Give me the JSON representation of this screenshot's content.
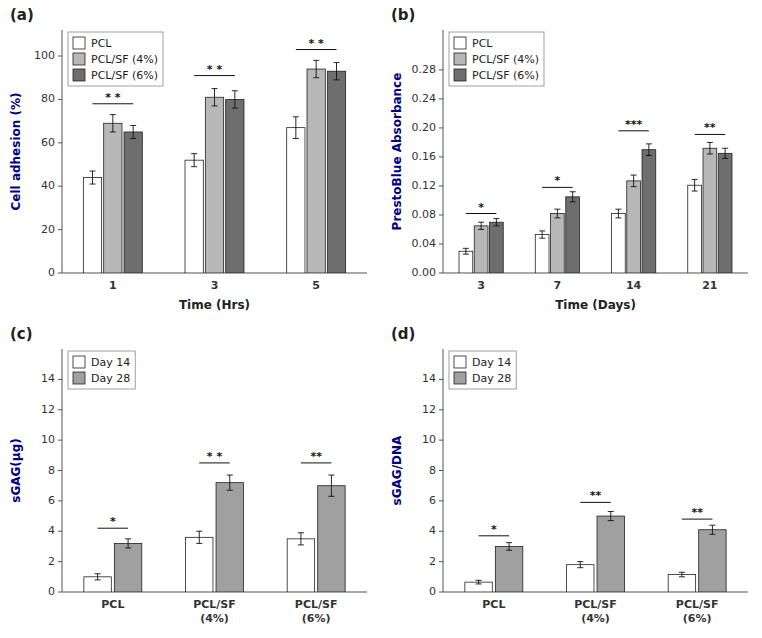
{
  "chart_data": [
    {
      "type": "bar",
      "title": "(a)",
      "x_label": "Time (Hrs)",
      "y_label": "Cell adhesion (%)",
      "categories": [
        "1",
        "3",
        "5"
      ],
      "series": [
        {
          "name": "PCL",
          "color": "white",
          "values": [
            44,
            52,
            67
          ],
          "errors": [
            3,
            3,
            5
          ]
        },
        {
          "name": "PCL/SF (4%)",
          "color": "#b8b8b8",
          "values": [
            69,
            81,
            94
          ],
          "errors": [
            4,
            4,
            4
          ]
        },
        {
          "name": "PCL/SF (6%)",
          "color": "#6e6e6e",
          "values": [
            65,
            80,
            93
          ],
          "errors": [
            3,
            4,
            4
          ]
        }
      ],
      "ylim": [
        0,
        112
      ],
      "yticks": [
        0,
        20,
        40,
        60,
        80,
        100
      ],
      "grid": false,
      "legend": "upper left",
      "annotations": [
        {
          "text": "* *",
          "y": 78,
          "category": "1",
          "series": [
            "PCL",
            "PCL/SF (6%)"
          ]
        },
        {
          "text": "* *",
          "y": 91,
          "category": "3",
          "series": [
            "PCL",
            "PCL/SF (6%)"
          ]
        },
        {
          "text": "* *",
          "y": 103,
          "category": "5",
          "series": [
            "PCL",
            "PCL/SF (6%)"
          ]
        }
      ]
    },
    {
      "type": "bar",
      "title": "(b)",
      "x_label": "Time (Days)",
      "y_label": "PrestoBlue Absorbance",
      "categories": [
        "3",
        "7",
        "14",
        "21"
      ],
      "series": [
        {
          "name": "PCL",
          "color": "white",
          "values": [
            0.03,
            0.053,
            0.082,
            0.121
          ],
          "errors": [
            0.004,
            0.005,
            0.006,
            0.008
          ]
        },
        {
          "name": "PCL/SF (4%)",
          "color": "#b8b8b8",
          "values": [
            0.065,
            0.082,
            0.127,
            0.172
          ],
          "errors": [
            0.005,
            0.006,
            0.008,
            0.008
          ]
        },
        {
          "name": "PCL/SF (6%)",
          "color": "#6e6e6e",
          "values": [
            0.07,
            0.105,
            0.17,
            0.165
          ],
          "errors": [
            0.005,
            0.007,
            0.008,
            0.007
          ]
        }
      ],
      "ylim": [
        0,
        0.335
      ],
      "yticks": [
        {
          "value": 0,
          "label": "0.00"
        },
        0.04,
        0.08,
        0.12,
        0.16,
        {
          "value": 0.2,
          "label": "0.20"
        },
        0.24,
        0.28
      ],
      "grid": false,
      "legend": "upper left",
      "annotations": [
        {
          "text": "*",
          "y": 0.082,
          "category": "3",
          "series": [
            "PCL",
            "PCL/SF (6%)"
          ]
        },
        {
          "text": "*",
          "y": 0.118,
          "category": "7",
          "series": [
            "PCL",
            "PCL/SF (6%)"
          ]
        },
        {
          "text": "***",
          "y": 0.196,
          "category": "14",
          "series": [
            "PCL",
            "PCL/SF (6%)"
          ]
        },
        {
          "text": "**",
          "y": 0.191,
          "category": "21",
          "series": [
            "PCL",
            "PCL/SF (6%)"
          ]
        }
      ]
    },
    {
      "type": "bar",
      "title": "(c)",
      "y_label": "sGAG(µg)",
      "categories": [
        "PCL",
        "PCL/SF\n(4%)",
        "PCL/SF\n(6%)"
      ],
      "series": [
        {
          "name": "Day 14",
          "color": "white",
          "values": [
            1.0,
            3.6,
            3.5
          ],
          "errors": [
            0.2,
            0.4,
            0.4
          ]
        },
        {
          "name": "Day 28",
          "color": "#a0a0a0",
          "values": [
            3.2,
            7.2,
            7.0
          ],
          "errors": [
            0.3,
            0.5,
            0.7
          ]
        }
      ],
      "ylim": [
        0,
        16
      ],
      "yticks": [
        0,
        2,
        4,
        6,
        8,
        10,
        12,
        14
      ],
      "grid": false,
      "legend": "upper left",
      "annotations": [
        {
          "text": "*",
          "y": 4.2,
          "category": "PCL",
          "series": [
            "Day 14",
            "Day 28"
          ]
        },
        {
          "text": "* *",
          "y": 8.5,
          "category": "PCL/SF\n(4%)",
          "series": [
            "Day 14",
            "Day 28"
          ]
        },
        {
          "text": "**",
          "y": 8.5,
          "category": "PCL/SF\n(6%)",
          "series": [
            "Day 14",
            "Day 28"
          ]
        }
      ]
    },
    {
      "type": "bar",
      "title": "(d)",
      "y_label": "sGAG/DNA",
      "categories": [
        "PCL",
        "PCL/SF\n(4%)",
        "PCL/SF\n(6%)"
      ],
      "series": [
        {
          "name": "Day 14",
          "color": "white",
          "values": [
            0.65,
            1.8,
            1.15
          ],
          "errors": [
            0.12,
            0.2,
            0.15
          ]
        },
        {
          "name": "Day 28",
          "color": "#a0a0a0",
          "values": [
            3.0,
            5.0,
            4.1
          ],
          "errors": [
            0.25,
            0.3,
            0.3
          ]
        }
      ],
      "ylim": [
        0,
        16
      ],
      "yticks": [
        0,
        2,
        4,
        6,
        8,
        10,
        12,
        14
      ],
      "grid": false,
      "legend": "upper left",
      "annotations": [
        {
          "text": "*",
          "y": 3.7,
          "category": "PCL",
          "series": [
            "Day 14",
            "Day 28"
          ]
        },
        {
          "text": "**",
          "y": 5.9,
          "category": "PCL/SF\n(4%)",
          "series": [
            "Day 14",
            "Day 28"
          ]
        },
        {
          "text": "**",
          "y": 4.8,
          "category": "PCL/SF\n(6%)",
          "series": [
            "Day 14",
            "Day 28"
          ]
        }
      ]
    }
  ]
}
